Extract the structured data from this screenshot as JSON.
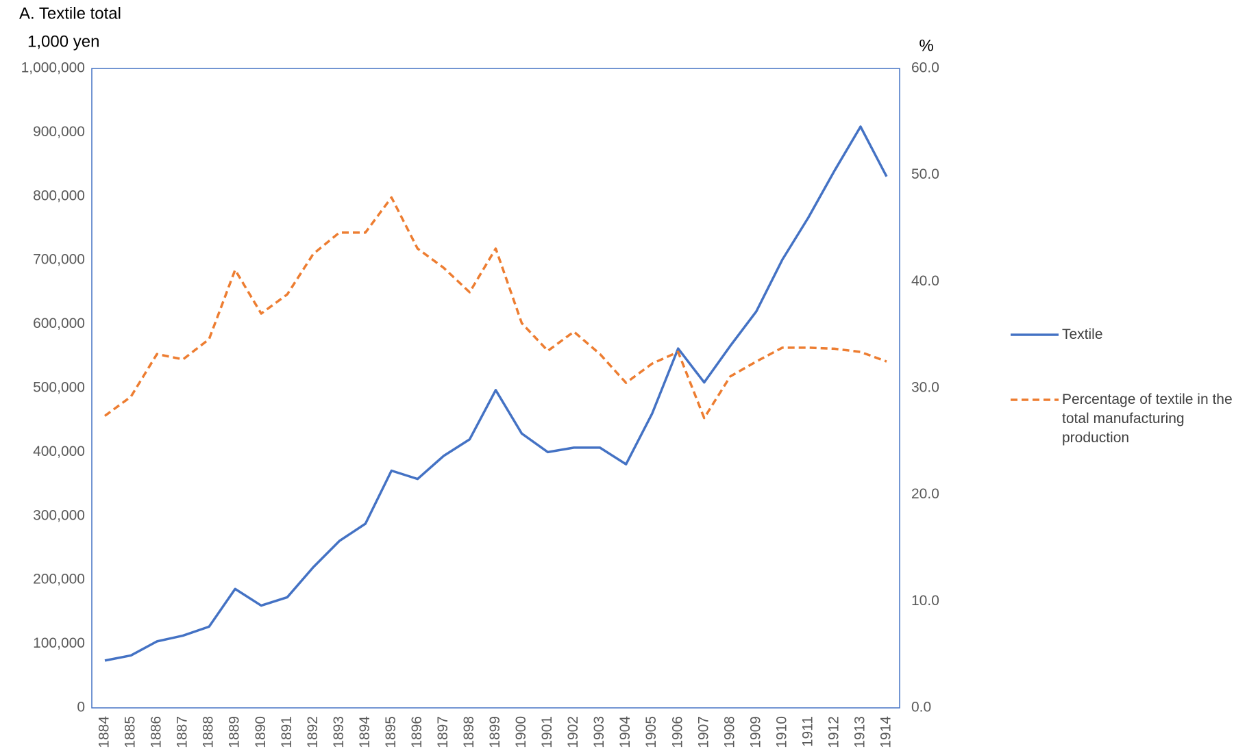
{
  "chart_data": {
    "type": "line",
    "title": "A. Textile total",
    "y_label": "1,000 yen",
    "y2_label": "%",
    "categories": [
      "1884",
      "1885",
      "1886",
      "1887",
      "1888",
      "1889",
      "1890",
      "1891",
      "1892",
      "1893",
      "1894",
      "1895",
      "1896",
      "1897",
      "1898",
      "1899",
      "1900",
      "1901",
      "1902",
      "1903",
      "1904",
      "1905",
      "1906",
      "1907",
      "1908",
      "1909",
      "1910",
      "1911",
      "1912",
      "1913",
      "1914"
    ],
    "series": [
      {
        "name": "Textile",
        "color": "#4472c4",
        "dashed": false,
        "axis": "y",
        "values": [
          74000,
          82000,
          104000,
          113000,
          127000,
          186000,
          160000,
          173000,
          220000,
          261000,
          288000,
          371000,
          358000,
          394000,
          420000,
          497000,
          429000,
          400000,
          407000,
          407000,
          381000,
          460000,
          562000,
          509000,
          566000,
          620000,
          701000,
          767000,
          840000,
          909000,
          831000
        ]
      },
      {
        "name": "Percentage of textile in the total manufacturing production",
        "color": "#ed7d31",
        "dashed": true,
        "axis": "y2",
        "values": [
          27.4,
          29.2,
          33.2,
          32.7,
          34.6,
          41.1,
          37.0,
          38.8,
          42.6,
          44.6,
          44.6,
          47.9,
          43.1,
          41.3,
          39.0,
          43.1,
          36.1,
          33.5,
          35.3,
          33.2,
          30.5,
          32.3,
          33.4,
          27.2,
          31.1,
          32.5,
          33.8,
          33.8,
          33.7,
          33.4,
          32.5
        ]
      }
    ],
    "ylim": [
      0,
      1000000
    ],
    "yticks": [
      0,
      {
        "value": 100000,
        "label": "100,000"
      },
      {
        "value": 200000,
        "label": "200,000"
      },
      {
        "value": 300000,
        "label": "300,000"
      },
      {
        "value": 400000,
        "label": "400,000"
      },
      {
        "value": 500000,
        "label": "500,000"
      },
      {
        "value": 600000,
        "label": "600,000"
      },
      {
        "value": 700000,
        "label": "700,000"
      },
      {
        "value": 800000,
        "label": "800,000"
      },
      {
        "value": 900000,
        "label": "900,000"
      },
      {
        "value": 1000000,
        "label": "1,000,000"
      }
    ],
    "y2lim": [
      0,
      60
    ],
    "y2ticks": [
      {
        "value": 0,
        "label": "0.0"
      },
      {
        "value": 10,
        "label": "10.0"
      },
      {
        "value": 20,
        "label": "20.0"
      },
      {
        "value": 30,
        "label": "30.0"
      },
      {
        "value": 40,
        "label": "40.0"
      },
      {
        "value": 50,
        "label": "50.0"
      },
      {
        "value": 60,
        "label": "60.0"
      }
    ],
    "grid": false,
    "legend": "right"
  }
}
